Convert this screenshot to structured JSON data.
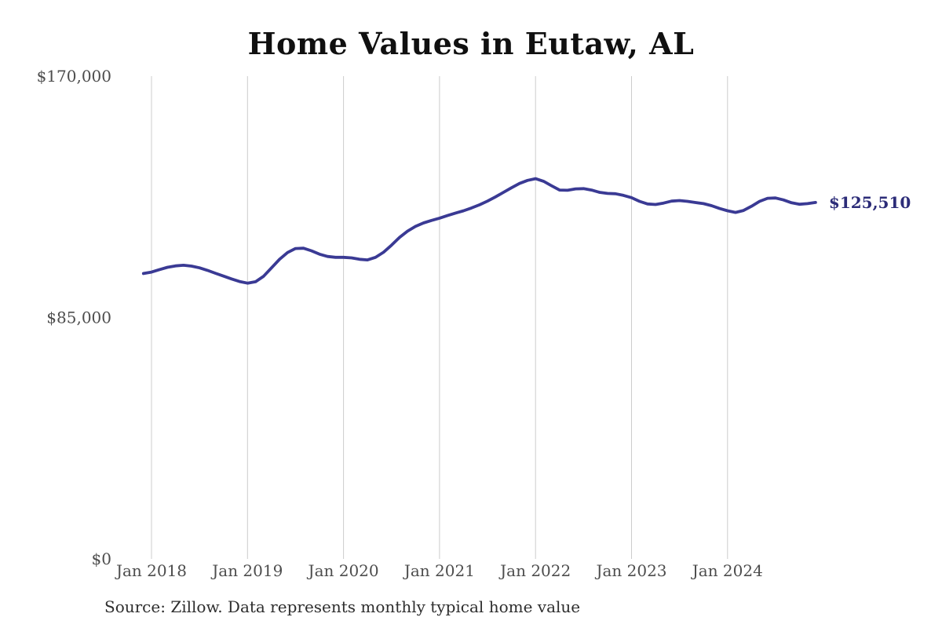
{
  "chart": {
    "title": "Home Values in Eutaw, AL",
    "source_note": "Source: Zillow. Data represents monthly typical home value",
    "end_label": "$125,510"
  },
  "colors": {
    "background": "#ffffff",
    "line": "#3a3a94",
    "end_label_text": "#2c2c78",
    "grid": "#cccccc",
    "axis_text": "#4d4d4d",
    "title_text": "#101010",
    "source_text": "#2e2e2e"
  },
  "y_axis": {
    "ticks": [
      {
        "label": "$170,000",
        "value": 170000
      },
      {
        "label": "$85,000",
        "value": 85000
      },
      {
        "label": "$0",
        "value": 0
      }
    ]
  },
  "x_axis": {
    "ticks": [
      {
        "label": "Jan 2018",
        "month": "2018-01"
      },
      {
        "label": "Jan 2019",
        "month": "2019-01"
      },
      {
        "label": "Jan 2020",
        "month": "2020-01"
      },
      {
        "label": "Jan 2021",
        "month": "2021-01"
      },
      {
        "label": "Jan 2022",
        "month": "2022-01"
      },
      {
        "label": "Jan 2023",
        "month": "2023-01"
      },
      {
        "label": "Jan 2024",
        "month": "2024-01"
      }
    ]
  },
  "chart_data": {
    "type": "line",
    "title": "Home Values in Eutaw, AL",
    "xlabel": "",
    "ylabel": "",
    "ylim": [
      0,
      170000
    ],
    "y_tick_values": [
      0,
      85000,
      170000
    ],
    "grid": "vertical-only",
    "legend": "none",
    "unit": "USD",
    "frequency": "monthly",
    "end_label": "$125,510",
    "latest_value": 125510,
    "series": [
      {
        "name": "Typical home value",
        "x": [
          "2017-12",
          "2018-01",
          "2018-02",
          "2018-03",
          "2018-04",
          "2018-05",
          "2018-06",
          "2018-07",
          "2018-08",
          "2018-09",
          "2018-10",
          "2018-11",
          "2018-12",
          "2019-01",
          "2019-02",
          "2019-03",
          "2019-04",
          "2019-05",
          "2019-06",
          "2019-07",
          "2019-08",
          "2019-09",
          "2019-10",
          "2019-11",
          "2019-12",
          "2020-01",
          "2020-02",
          "2020-03",
          "2020-04",
          "2020-05",
          "2020-06",
          "2020-07",
          "2020-08",
          "2020-09",
          "2020-10",
          "2020-11",
          "2020-12",
          "2021-01",
          "2021-02",
          "2021-03",
          "2021-04",
          "2021-05",
          "2021-06",
          "2021-07",
          "2021-08",
          "2021-09",
          "2021-10",
          "2021-11",
          "2021-12",
          "2022-01",
          "2022-02",
          "2022-03",
          "2022-04",
          "2022-05",
          "2022-06",
          "2022-07",
          "2022-08",
          "2022-09",
          "2022-10",
          "2022-11",
          "2022-12",
          "2023-01",
          "2023-02",
          "2023-03",
          "2023-04",
          "2023-05",
          "2023-06",
          "2023-07",
          "2023-08",
          "2023-09",
          "2023-10",
          "2023-11",
          "2023-12",
          "2024-01",
          "2024-02",
          "2024-03",
          "2024-04",
          "2024-05",
          "2024-06",
          "2024-07",
          "2024-08",
          "2024-09",
          "2024-10",
          "2024-11",
          "2024-12"
        ],
        "values": [
          100500,
          101000,
          101900,
          102700,
          103200,
          103400,
          103100,
          102500,
          101600,
          100600,
          99600,
          98600,
          97700,
          97100,
          97600,
          99500,
          102500,
          105500,
          107900,
          109300,
          109400,
          108500,
          107300,
          106500,
          106200,
          106200,
          106000,
          105500,
          105300,
          106200,
          108000,
          110500,
          113200,
          115400,
          117100,
          118300,
          119200,
          120000,
          120900,
          121800,
          122600,
          123600,
          124700,
          126000,
          127500,
          129100,
          130700,
          132200,
          133300,
          133900,
          133000,
          131400,
          129900,
          129800,
          130300,
          130400,
          129900,
          129100,
          128700,
          128600,
          128000,
          127200,
          125900,
          125000,
          124800,
          125300,
          126000,
          126200,
          125900,
          125500,
          125100,
          124400,
          123400,
          122600,
          122000,
          122700,
          124200,
          125900,
          127000,
          127100,
          126400,
          125400,
          124900,
          125100,
          125510
        ]
      }
    ]
  }
}
